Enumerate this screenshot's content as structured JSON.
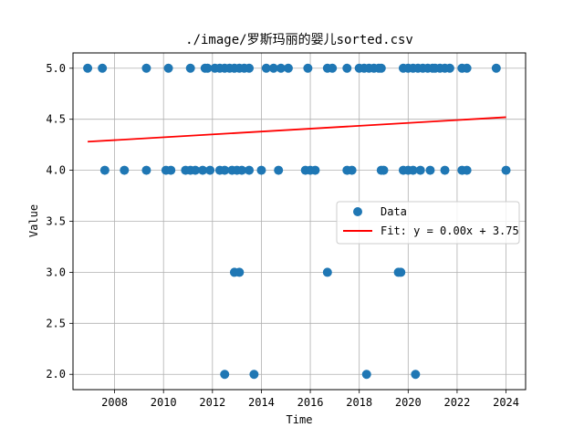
{
  "chart_data": {
    "type": "scatter",
    "title": "./image/罗斯玛丽的婴儿sorted.csv",
    "xlabel": "Time",
    "ylabel": "Value",
    "xlim": [
      2006.3,
      2024.8
    ],
    "ylim": [
      1.85,
      5.15
    ],
    "xticks": [
      2008,
      2010,
      2012,
      2014,
      2016,
      2018,
      2020,
      2022,
      2024
    ],
    "yticks": [
      2.0,
      2.5,
      3.0,
      3.5,
      4.0,
      4.5,
      5.0
    ],
    "ytick_labels": [
      "2.0",
      "2.5",
      "3.0",
      "3.5",
      "4.0",
      "4.5",
      "5.0"
    ],
    "grid": true,
    "legend_position": "center-right",
    "series": [
      {
        "name": "Data",
        "kind": "scatter",
        "color": "#1f77b4",
        "x": [
          2006.9,
          2007.5,
          2009.3,
          2010.2,
          2011.1,
          2011.7,
          2011.8,
          2012.1,
          2012.3,
          2012.5,
          2012.7,
          2012.9,
          2013.1,
          2013.3,
          2013.5,
          2014.2,
          2014.5,
          2014.8,
          2015.1,
          2015.9,
          2016.7,
          2016.9,
          2017.5,
          2018.0,
          2018.2,
          2018.4,
          2018.6,
          2018.8,
          2018.9,
          2019.8,
          2020.0,
          2020.2,
          2020.4,
          2020.6,
          2020.8,
          2021.0,
          2021.1,
          2021.3,
          2021.5,
          2021.7,
          2022.2,
          2022.4,
          2023.6,
          2007.6,
          2008.4,
          2009.3,
          2010.1,
          2010.3,
          2010.9,
          2011.1,
          2011.3,
          2011.6,
          2011.9,
          2012.3,
          2012.5,
          2012.8,
          2013.0,
          2013.2,
          2013.5,
          2014.0,
          2014.7,
          2015.8,
          2016.0,
          2016.2,
          2017.5,
          2017.7,
          2018.9,
          2019.0,
          2019.8,
          2020.0,
          2020.2,
          2020.5,
          2020.9,
          2021.5,
          2022.2,
          2022.4,
          2024.0,
          2012.9,
          2013.1,
          2016.7,
          2019.6,
          2019.7,
          2012.5,
          2013.7,
          2018.3,
          2020.3
        ],
        "y": [
          5,
          5,
          5,
          5,
          5,
          5,
          5,
          5,
          5,
          5,
          5,
          5,
          5,
          5,
          5,
          5,
          5,
          5,
          5,
          5,
          5,
          5,
          5,
          5,
          5,
          5,
          5,
          5,
          5,
          5,
          5,
          5,
          5,
          5,
          5,
          5,
          5,
          5,
          5,
          5,
          5,
          5,
          5,
          4,
          4,
          4,
          4,
          4,
          4,
          4,
          4,
          4,
          4,
          4,
          4,
          4,
          4,
          4,
          4,
          4,
          4,
          4,
          4,
          4,
          4,
          4,
          4,
          4,
          4,
          4,
          4,
          4,
          4,
          4,
          4,
          4,
          4,
          3,
          3,
          3,
          3,
          3,
          2,
          2,
          2,
          2
        ]
      },
      {
        "name": "Fit: y = 0.00x + 3.75",
        "kind": "line",
        "color": "#ff0000",
        "x": [
          2006.9,
          2024.0
        ],
        "y": [
          4.28,
          4.52
        ]
      }
    ]
  }
}
